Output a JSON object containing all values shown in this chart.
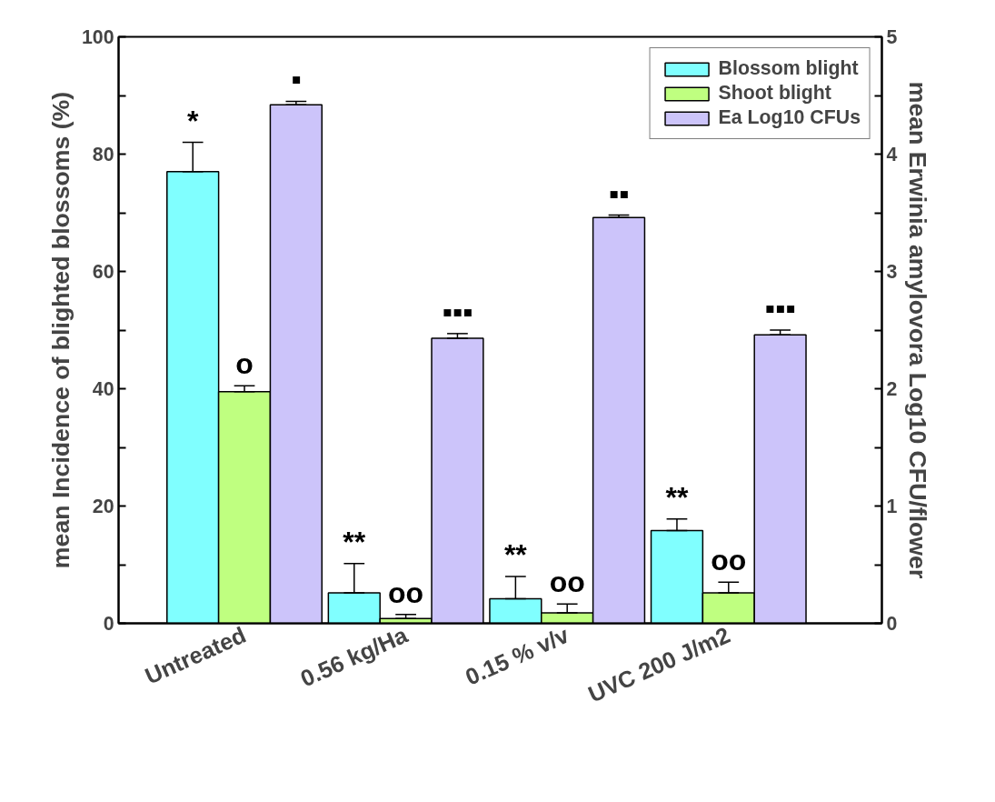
{
  "chart_data": {
    "type": "bar",
    "categories": [
      "Untreated",
      "0.56 kg/Ha",
      "0.15 % v/v",
      "UVC 200 J/m2"
    ],
    "ylabel": "mean Incidence of blighted blossoms (%)",
    "y2label": "mean Erwinia amylovora Log10 CFU/flower",
    "series": [
      {
        "name": "Blossom blight",
        "color": "#80ffff",
        "values": [
          77,
          5.2,
          4.2,
          15.8
        ],
        "errors": [
          [
            77,
            82
          ],
          [
            5.2,
            10.2
          ],
          [
            4.2,
            8
          ],
          [
            15.8,
            17.8
          ]
        ]
      },
      {
        "name": "Shoot blight",
        "color": "#bfff80",
        "values": [
          39.5,
          0.8,
          1.8,
          5.2
        ],
        "errors": [
          [
            39.5,
            40.5
          ],
          [
            0.8,
            1.5
          ],
          [
            1.8,
            3.3
          ],
          [
            5.2,
            7
          ]
        ]
      },
      {
        "name": "Ea Log10 CFUs",
        "color": "#ccc4fa",
        "axis": "y2",
        "values": [
          4.42,
          2.43,
          3.46,
          2.46
        ],
        "errors": [
          [
            4.42,
            4.45
          ],
          [
            2.43,
            2.47
          ],
          [
            3.46,
            3.48
          ],
          [
            2.46,
            2.5
          ]
        ]
      }
    ],
    "ylim": [
      0,
      100
    ],
    "yticks": [
      0,
      {
        "value": 10,
        "label": null
      },
      20,
      {
        "value": 30,
        "label": null
      },
      40,
      {
        "value": 50,
        "label": null
      },
      60,
      {
        "value": 70,
        "label": null
      },
      80,
      {
        "value": 90,
        "label": null
      },
      100
    ],
    "y2lim": [
      0,
      5
    ],
    "y2ticks": [
      0,
      {
        "value": 0.5,
        "label": null
      },
      1,
      {
        "value": 1.5,
        "label": null
      },
      2,
      {
        "value": 2.5,
        "label": null
      },
      3,
      {
        "value": 3.5,
        "label": null
      },
      4,
      {
        "value": 4.5,
        "label": null
      },
      5
    ],
    "annotations": [
      "*",
      "o",
      "▪",
      "**",
      "oo",
      "▪▪▪",
      "**",
      "oo",
      "▪▪",
      "**",
      "oo",
      "▪▪▪"
    ],
    "legend": "top right",
    "grid": false
  }
}
